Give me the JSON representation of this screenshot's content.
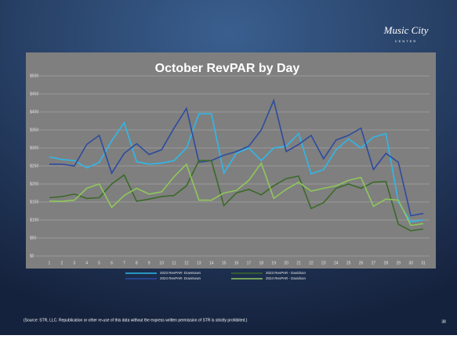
{
  "logo": {
    "name": "Music City",
    "sub": "CENTER"
  },
  "chart_data": {
    "type": "line",
    "title": "October RevPAR by Day",
    "categories": [
      "1",
      "2",
      "3",
      "4",
      "5",
      "6",
      "7",
      "8",
      "9",
      "10",
      "11",
      "12",
      "13",
      "14",
      "15",
      "16",
      "17",
      "18",
      "19",
      "20",
      "21",
      "22",
      "23",
      "24",
      "25",
      "26",
      "27",
      "28",
      "29",
      "30",
      "31"
    ],
    "series": [
      {
        "name": "2023 RevPAR- Downtown",
        "color": "#2fb8ea",
        "values": [
          275,
          268,
          265,
          245,
          260,
          320,
          370,
          262,
          255,
          258,
          265,
          300,
          395,
          395,
          230,
          285,
          300,
          265,
          300,
          305,
          340,
          228,
          240,
          295,
          325,
          300,
          330,
          340,
          150,
          95,
          100
        ]
      },
      {
        "name": "2024 RevPAR- Downtown",
        "color": "#2d4b9f",
        "values": [
          255,
          255,
          250,
          310,
          335,
          230,
          285,
          312,
          282,
          295,
          355,
          410,
          260,
          265,
          280,
          290,
          305,
          350,
          432,
          290,
          310,
          335,
          270,
          322,
          335,
          355,
          240,
          285,
          260,
          112,
          118
        ]
      },
      {
        "name": "2023 RevPAR - Davidson",
        "color": "#3b6a28",
        "values": [
          162,
          165,
          172,
          160,
          162,
          200,
          225,
          152,
          158,
          165,
          168,
          195,
          265,
          265,
          140,
          175,
          185,
          170,
          195,
          215,
          222,
          132,
          148,
          188,
          200,
          188,
          205,
          207,
          88,
          70,
          75
        ]
      },
      {
        "name": "2024 RevPAR - Davidson",
        "color": "#8fc75a",
        "values": [
          152,
          152,
          155,
          188,
          200,
          135,
          168,
          188,
          172,
          178,
          220,
          255,
          155,
          155,
          175,
          182,
          210,
          258,
          160,
          185,
          205,
          180,
          188,
          195,
          210,
          218,
          138,
          158,
          155,
          85,
          90
        ]
      }
    ],
    "ylim": [
      0,
      500
    ],
    "yticks": [
      {
        "value": 0,
        "label": "$0"
      },
      {
        "value": 50,
        "label": "$50"
      },
      {
        "value": 100,
        "label": "$100"
      },
      {
        "value": 150,
        "label": "$150"
      },
      {
        "value": 200,
        "label": "$200"
      },
      {
        "value": 250,
        "label": "$250"
      },
      {
        "value": 300,
        "label": "$300"
      },
      {
        "value": 350,
        "label": "$350"
      },
      {
        "value": 400,
        "label": "$400"
      },
      {
        "value": 450,
        "label": "$450"
      },
      {
        "value": 500,
        "label": "$500"
      }
    ],
    "grid": true
  },
  "footer": {
    "source": "(Source: STR, LLC. Republication or other re-use of this data without the express written permission of STR is strictly prohibited.)",
    "page": "38"
  }
}
